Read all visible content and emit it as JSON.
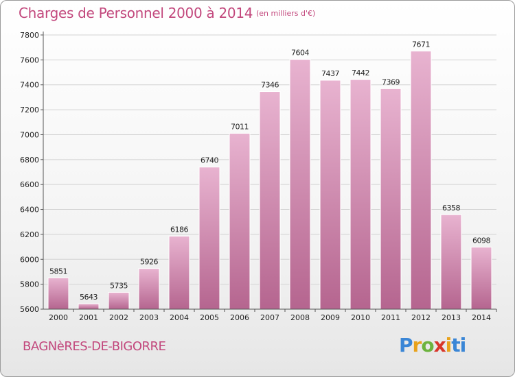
{
  "header": {
    "title": "Charges de Personnel 2000 à 2014",
    "unit": "(en milliers d'€)"
  },
  "footer": {
    "commune": "BAGNèRES-DE-BIGORRE",
    "logo": "Proxiti"
  },
  "colors": {
    "bar": "#d98cb5",
    "bar_light": "#e8b3d0",
    "bar_dark": "#b5658f",
    "text_accent": "#c2477c"
  },
  "chart_data": {
    "type": "bar",
    "title": "Charges de Personnel 2000 à 2014",
    "subtitle": "(en milliers d'€)",
    "xlabel": "",
    "ylabel": "",
    "categories": [
      "2000",
      "2001",
      "2002",
      "2003",
      "2004",
      "2005",
      "2006",
      "2007",
      "2008",
      "2009",
      "2010",
      "2011",
      "2012",
      "2013",
      "2014"
    ],
    "values": [
      5851,
      5643,
      5735,
      5926,
      6186,
      6740,
      7011,
      7346,
      7604,
      7437,
      7442,
      7369,
      7671,
      6358,
      6098
    ],
    "ylim": [
      5600,
      7800
    ],
    "yticks": [
      5600,
      5800,
      6000,
      6200,
      6400,
      6600,
      6800,
      7000,
      7200,
      7400,
      7600,
      7800
    ],
    "grid": true,
    "legend": "none"
  }
}
